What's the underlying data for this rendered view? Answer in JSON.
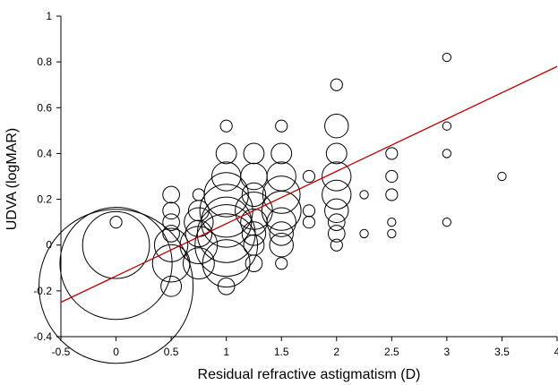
{
  "chart_data": {
    "type": "scatter",
    "title": "",
    "xlabel": "Residual refractive astigmatism (D)",
    "ylabel": "UDVA (logMAR)",
    "xlim": [
      -0.5,
      4
    ],
    "ylim": [
      -0.4,
      1
    ],
    "xticks": [
      -0.5,
      0,
      0.5,
      1,
      1.5,
      2,
      2.5,
      3,
      3.5,
      4
    ],
    "xtick_labels": [
      "-0.5",
      "0",
      "0.5",
      "1",
      "1.5",
      "2",
      "2.5",
      "3",
      "3.5",
      "4"
    ],
    "yticks": [
      -0.4,
      -0.2,
      0,
      0.2,
      0.4,
      0.6,
      0.8,
      1
    ],
    "ytick_labels": [
      "-0.4",
      "-0.2",
      "0",
      "0.2",
      "0.4",
      "0.6",
      "0.8",
      "1"
    ],
    "grid": false,
    "bubble_style": "open black circles; size proportional to number of eyes",
    "trendline": {
      "color": "#c00000",
      "x": [
        -0.5,
        4
      ],
      "y": [
        -0.25,
        0.78
      ]
    },
    "points": [
      {
        "x": 0,
        "y": 0.1,
        "size": 1
      },
      {
        "x": 0,
        "y": 0,
        "size": 32
      },
      {
        "x": 0,
        "y": -0.08,
        "size": 90
      },
      {
        "x": 0,
        "y": -0.18,
        "size": 170
      },
      {
        "x": 0.5,
        "y": 0.22,
        "size": 2
      },
      {
        "x": 0.5,
        "y": 0.15,
        "size": 2
      },
      {
        "x": 0.5,
        "y": 0.1,
        "size": 2
      },
      {
        "x": 0.5,
        "y": 0.05,
        "size": 2
      },
      {
        "x": 0.5,
        "y": 0,
        "size": 8
      },
      {
        "x": 0.5,
        "y": -0.08,
        "size": 10
      },
      {
        "x": 0.5,
        "y": -0.18,
        "size": 3
      },
      {
        "x": 0.75,
        "y": 0.22,
        "size": 1
      },
      {
        "x": 0.75,
        "y": 0.15,
        "size": 3
      },
      {
        "x": 0.75,
        "y": 0.1,
        "size": 6
      },
      {
        "x": 0.75,
        "y": 0.05,
        "size": 5
      },
      {
        "x": 0.75,
        "y": 0,
        "size": 10
      },
      {
        "x": 0.75,
        "y": -0.08,
        "size": 7
      },
      {
        "x": 1,
        "y": 0.52,
        "size": 1
      },
      {
        "x": 1,
        "y": 0.4,
        "size": 3
      },
      {
        "x": 1,
        "y": 0.3,
        "size": 6
      },
      {
        "x": 1,
        "y": 0.22,
        "size": 14
      },
      {
        "x": 1,
        "y": 0.15,
        "size": 20
      },
      {
        "x": 1,
        "y": 0.1,
        "size": 18
      },
      {
        "x": 1,
        "y": 0.05,
        "size": 24
      },
      {
        "x": 1,
        "y": 0,
        "size": 28
      },
      {
        "x": 1,
        "y": -0.08,
        "size": 16
      },
      {
        "x": 1,
        "y": -0.18,
        "size": 2
      },
      {
        "x": 1.25,
        "y": 0.4,
        "size": 3
      },
      {
        "x": 1.25,
        "y": 0.3,
        "size": 5
      },
      {
        "x": 1.25,
        "y": 0.22,
        "size": 4
      },
      {
        "x": 1.25,
        "y": 0.15,
        "size": 10
      },
      {
        "x": 1.25,
        "y": 0.1,
        "size": 5
      },
      {
        "x": 1.25,
        "y": 0.05,
        "size": 4
      },
      {
        "x": 1.25,
        "y": 0,
        "size": 3
      },
      {
        "x": 1.25,
        "y": -0.08,
        "size": 2
      },
      {
        "x": 1.5,
        "y": 0.52,
        "size": 1
      },
      {
        "x": 1.5,
        "y": 0.4,
        "size": 3
      },
      {
        "x": 1.5,
        "y": 0.3,
        "size": 6
      },
      {
        "x": 1.5,
        "y": 0.22,
        "size": 10
      },
      {
        "x": 1.5,
        "y": 0.15,
        "size": 11
      },
      {
        "x": 1.5,
        "y": 0.1,
        "size": 6
      },
      {
        "x": 1.5,
        "y": 0.05,
        "size": 4
      },
      {
        "x": 1.5,
        "y": 0,
        "size": 4
      },
      {
        "x": 1.5,
        "y": -0.08,
        "size": 1
      },
      {
        "x": 1.75,
        "y": 0.3,
        "size": 1
      },
      {
        "x": 1.75,
        "y": 0.15,
        "size": 1
      },
      {
        "x": 1.75,
        "y": 0.1,
        "size": 1
      },
      {
        "x": 2,
        "y": 0.7,
        "size": 1
      },
      {
        "x": 2,
        "y": 0.52,
        "size": 4
      },
      {
        "x": 2,
        "y": 0.4,
        "size": 3
      },
      {
        "x": 2,
        "y": 0.3,
        "size": 6
      },
      {
        "x": 2,
        "y": 0.22,
        "size": 6
      },
      {
        "x": 2,
        "y": 0.15,
        "size": 4
      },
      {
        "x": 2,
        "y": 0.1,
        "size": 2
      },
      {
        "x": 2,
        "y": 0.05,
        "size": 2
      },
      {
        "x": 2,
        "y": 0,
        "size": 1
      },
      {
        "x": 2.25,
        "y": 0.22,
        "size": 0.5
      },
      {
        "x": 2.25,
        "y": 0.05,
        "size": 0.5
      },
      {
        "x": 2.5,
        "y": 0.4,
        "size": 1
      },
      {
        "x": 2.5,
        "y": 0.3,
        "size": 1
      },
      {
        "x": 2.5,
        "y": 0.22,
        "size": 1
      },
      {
        "x": 2.5,
        "y": 0.1,
        "size": 0.5
      },
      {
        "x": 2.5,
        "y": 0.05,
        "size": 0.5
      },
      {
        "x": 3,
        "y": 0.82,
        "size": 0.5
      },
      {
        "x": 3,
        "y": 0.52,
        "size": 0.5
      },
      {
        "x": 3,
        "y": 0.4,
        "size": 0.5
      },
      {
        "x": 3,
        "y": 0.1,
        "size": 0.5
      },
      {
        "x": 3.5,
        "y": 0.3,
        "size": 0.5
      }
    ]
  }
}
